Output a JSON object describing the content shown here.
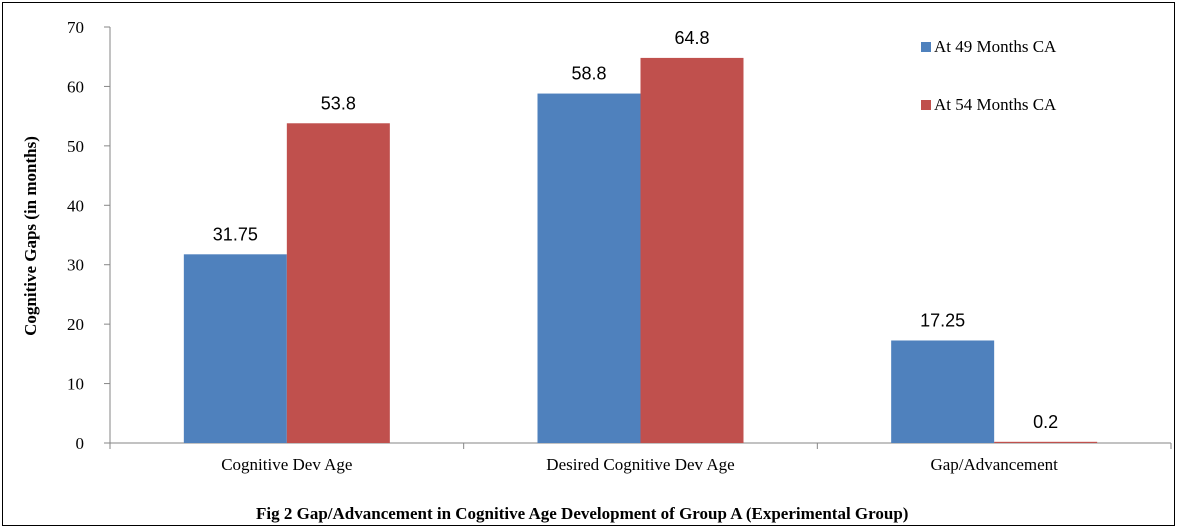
{
  "chart_data": {
    "type": "bar",
    "categories": [
      "Cognitive Dev Age",
      "Desired Cognitive  Dev Age",
      "Gap/Advancement"
    ],
    "series": [
      {
        "name": "At 49 Months CA",
        "values": [
          31.75,
          58.8,
          17.25
        ],
        "labels": [
          "31.75",
          "58.8",
          "17.25"
        ],
        "color": "#4F81BD"
      },
      {
        "name": "At 54 Months CA",
        "values": [
          53.8,
          64.8,
          0.2
        ],
        "labels": [
          "53.8",
          "64.8",
          "0.2"
        ],
        "color": "#C0504D"
      }
    ],
    "ylabel": "Cognitive Gaps (in months)",
    "xlabel": "",
    "ylim": [
      0,
      70
    ],
    "yticks": [
      0,
      10,
      20,
      30,
      40,
      50,
      60,
      70
    ],
    "grid": false,
    "legend": "top-right",
    "caption": "Fig 2 Gap/Advancement in Cognitive Age Development of Group  A (Experimental Group)"
  }
}
